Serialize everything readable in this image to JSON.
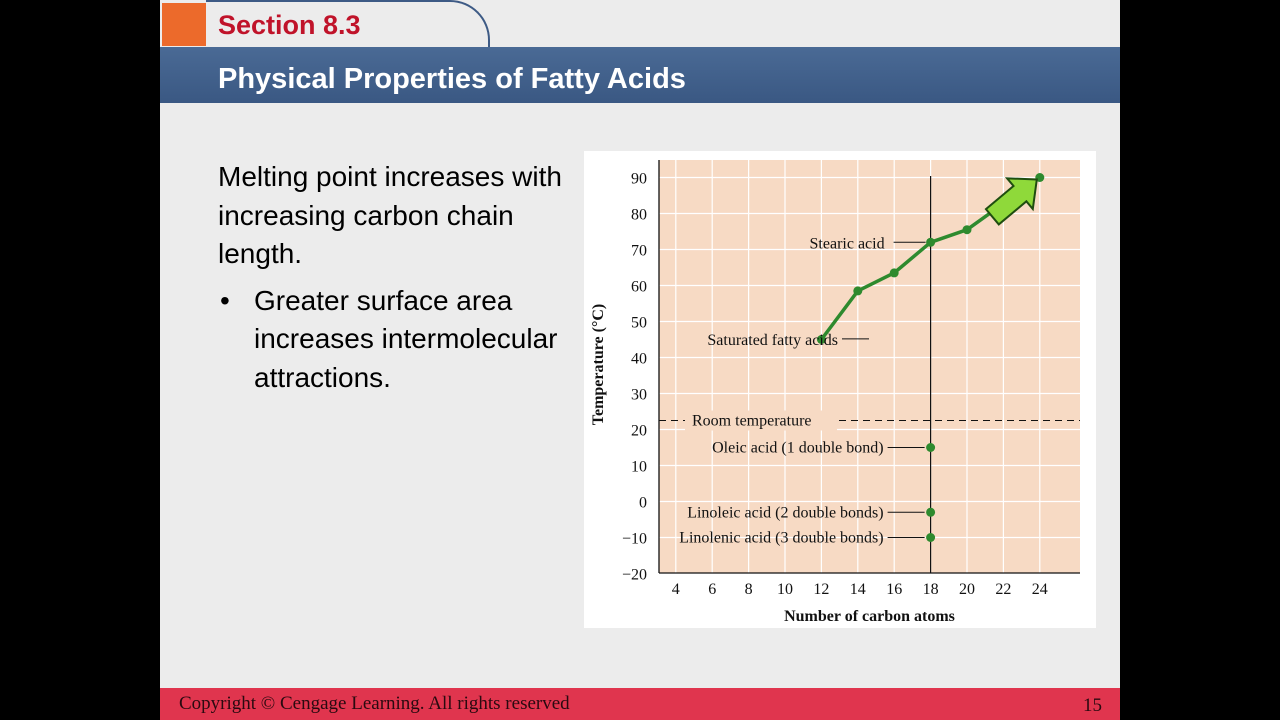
{
  "section": "Section 8.3",
  "title": "Physical Properties of Fatty Acids",
  "body": {
    "main_point": "Melting point increases with increasing carbon chain length.",
    "bullet_symbol": "•",
    "bullet": "Greater surface area increases intermolecular attractions."
  },
  "footer": {
    "copyright": "Copyright © Cengage Learning. All rights reserved",
    "page": "15"
  },
  "colors": {
    "accent_orange": "#ec6a2b",
    "title_bar": "#3f5e8a",
    "section_red": "#c0132a",
    "footer_red": "#e0354e",
    "plot_background": "#f7dac4",
    "series_green": "#2e8a2e",
    "arrow_green": "#8fd93a"
  },
  "chart_data": {
    "type": "line",
    "xlabel": "Number of carbon atoms",
    "ylabel": "Temperature (°C)",
    "xlim": [
      2,
      24
    ],
    "ylim": [
      -20,
      92
    ],
    "xticks": [
      4,
      6,
      8,
      10,
      12,
      14,
      16,
      18,
      20,
      22,
      24
    ],
    "yticks": [
      90,
      80,
      70,
      60,
      50,
      40,
      30,
      20,
      10,
      0,
      -10,
      -20
    ],
    "grid": true,
    "series": [
      {
        "name": "Saturated fatty acids",
        "x": [
          12,
          14,
          16,
          18,
          20,
          24
        ],
        "y": [
          45,
          58.5,
          63.5,
          72,
          75.5,
          90
        ]
      },
      {
        "name": "",
        "x": [
          18,
          18,
          18
        ],
        "y": [
          15,
          -3,
          -10
        ],
        "labels": [
          "Oleic acid (1 double bond)",
          "Linoleic acid (2 double bonds)",
          "Linolenic acid (3 double bonds)"
        ]
      }
    ],
    "reference_lines": [
      {
        "orientation": "horizontal",
        "value": 22.5,
        "label": "Room temperature",
        "style": "dashed"
      },
      {
        "orientation": "vertical",
        "value": 18,
        "style": "solid"
      }
    ],
    "annotations": [
      {
        "text": "Stearic acid",
        "x": 18,
        "y": 72
      },
      {
        "text": "Saturated fatty acids",
        "x": 14,
        "y": 51
      }
    ],
    "arrow": {
      "to_x": 24,
      "to_y": 90,
      "icon": "green-arrow-icon"
    }
  }
}
